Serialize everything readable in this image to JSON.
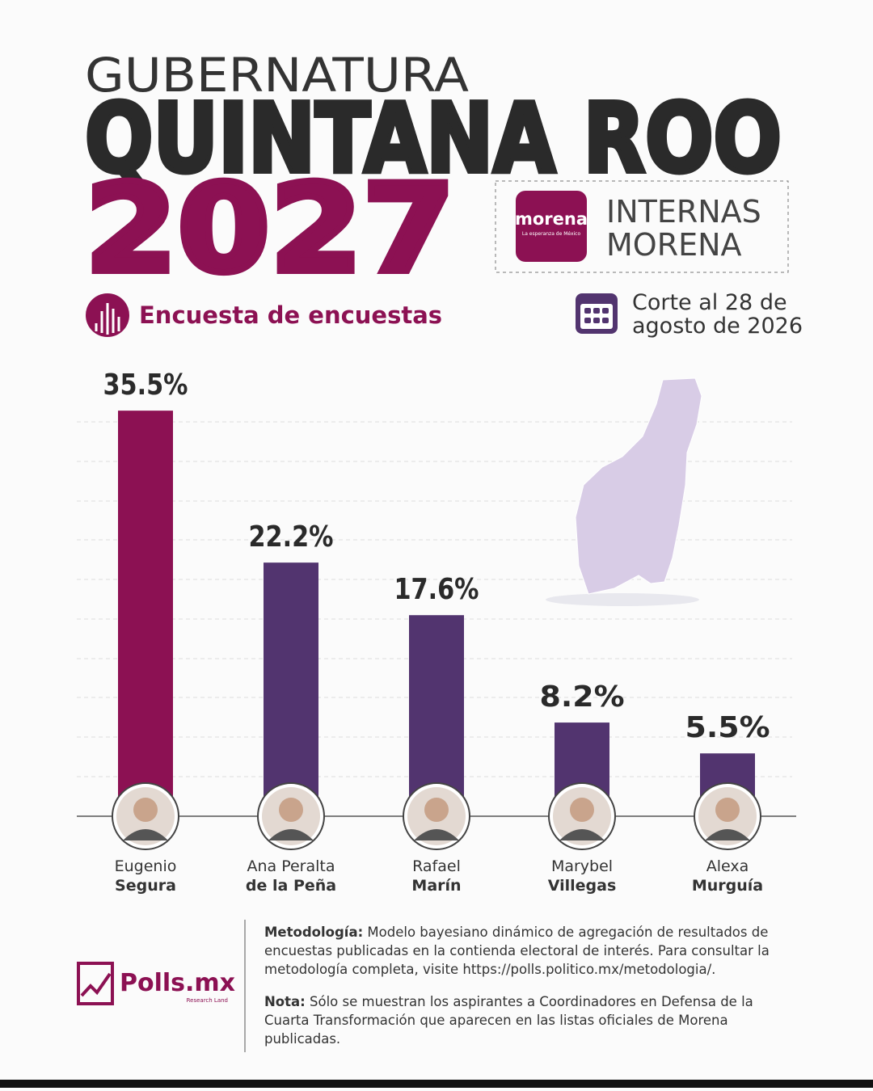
{
  "header": {
    "kicker": "GUBERNATURA",
    "title": "QUINTANA ROO",
    "year": "2027",
    "badge_logo": "morena",
    "badge_logo_tagline": "La esperanza de México",
    "badge_line1": "INTERNAS",
    "badge_line2": "MORENA",
    "subtitle": "Encuesta de encuestas",
    "date_line1": "Corte al 28 de",
    "date_line2": "agosto de 2026"
  },
  "chart_data": {
    "type": "bar",
    "categories": [
      {
        "first": "Eugenio",
        "last": "Segura"
      },
      {
        "first": "Ana Peralta",
        "last": "de la Peña"
      },
      {
        "first": "Rafael",
        "last": "Marín"
      },
      {
        "first": "Marybel",
        "last": "Villegas"
      },
      {
        "first": "Alexa",
        "last": "Murguía"
      }
    ],
    "values": [
      35.5,
      22.2,
      17.6,
      8.2,
      5.5
    ],
    "value_labels": [
      "35.5%",
      "22.2%",
      "17.6%",
      "8.2%",
      "5.5%"
    ],
    "colors": [
      "#8c1153",
      "#52346f",
      "#52346f",
      "#52346f",
      "#52346f"
    ],
    "ylim": [
      0,
      36.5
    ]
  },
  "footer": {
    "brand": "Polls.mx",
    "brand_sub": "Research Land",
    "methodology_label": "Metodología:",
    "methodology_text": "Modelo bayesiano dinámico de agregación de resultados de encuestas publicadas en la contienda electoral de interés. Para consultar la metodología completa, visite https://polls.politico.mx/metodologia/.",
    "note_label": "Nota:",
    "note_text": "Sólo se muestran los aspirantes a Coordinadores en Defensa de la Cuarta Transformación que aparecen en las listas oficiales de Morena publicadas."
  }
}
